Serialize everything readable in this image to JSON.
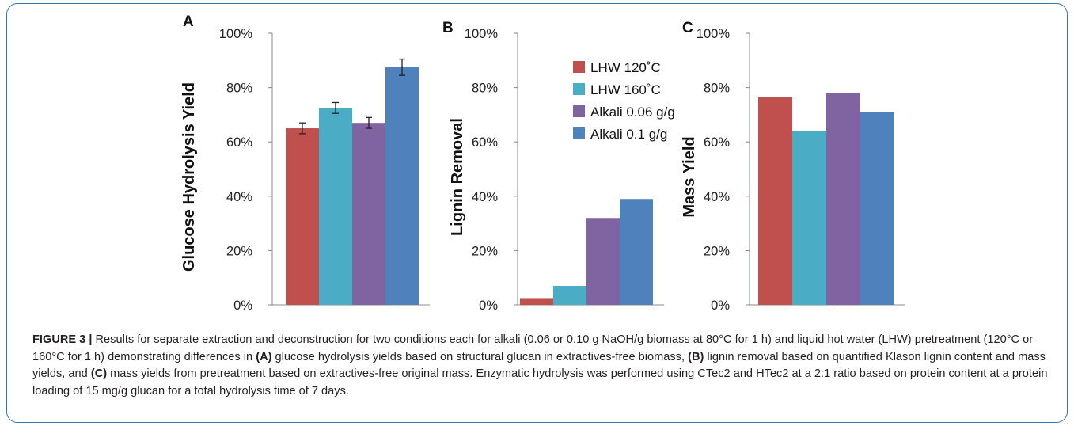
{
  "colors": {
    "LHW 120°C": "#c0504d",
    "LHW 160°C": "#4bacc6",
    "Alkali 0.06 g/g": "#8064a2",
    "Alkali 0.1 g/g": "#4f81bd",
    "frame": "#2f76b7"
  },
  "chart_data": [
    {
      "type": "bar",
      "panel": "A",
      "ylabel": "Glucose Hydrolysis Yield",
      "ylim": [
        0,
        100
      ],
      "yticks": [
        "0%",
        "20%",
        "40%",
        "60%",
        "80%",
        "100%"
      ],
      "grid": false,
      "categories": [
        "LHW 120°C",
        "LHW 160°C",
        "Alkali 0.06 g/g",
        "Alkali 0.1 g/g"
      ],
      "values": [
        65,
        72.5,
        67,
        87.5
      ],
      "errors": [
        2,
        2,
        2,
        3
      ]
    },
    {
      "type": "bar",
      "panel": "B",
      "ylabel": "Lignin Removal",
      "ylim": [
        0,
        100
      ],
      "yticks": [
        "0%",
        "20%",
        "40%",
        "60%",
        "80%",
        "100%"
      ],
      "grid": false,
      "categories": [
        "LHW 120°C",
        "LHW 160°C",
        "Alkali 0.06 g/g",
        "Alkali 0.1 g/g"
      ],
      "values": [
        2.5,
        7,
        32,
        39
      ],
      "legend": {
        "placement": "top-right",
        "entries": [
          "LHW 120˚C",
          "LHW 160˚C",
          "Alkali 0.06 g/g",
          "Alkali 0.1 g/g"
        ]
      }
    },
    {
      "type": "bar",
      "panel": "C",
      "ylabel": "Mass Yield",
      "ylim": [
        0,
        100
      ],
      "yticks": [
        "0%",
        "20%",
        "40%",
        "60%",
        "80%",
        "100%"
      ],
      "grid": false,
      "categories": [
        "LHW 120°C",
        "LHW 160°C",
        "Alkali 0.06 g/g",
        "Alkali 0.1 g/g"
      ],
      "values": [
        76.5,
        64,
        78,
        71
      ]
    }
  ],
  "caption": {
    "figure_label": "FIGURE 3 |",
    "seg1": " Results for separate extraction and deconstruction for two conditions each for alkali (0.06 or 0.10 g NaOH/g biomass at 80°C for 1 h) and liquid hot water (LHW) pretreatment (120°C or 160°C for 1 h) demonstrating differences in ",
    "ref_a": "(A)",
    "seg2": " glucose hydrolysis yields based on structural glucan in extractives-free biomass, ",
    "ref_b": "(B)",
    "seg3": " lignin removal based on quantified Klason lignin content and mass yields, and ",
    "ref_c": "(C)",
    "seg4": " mass yields from pretreatment based on extractives-free original mass. Enzymatic hydrolysis was performed using CTec2 and HTec2 at a 2:1 ratio based on protein content at a protein loading of 15 mg/g glucan for a total hydrolysis time of 7 days."
  }
}
